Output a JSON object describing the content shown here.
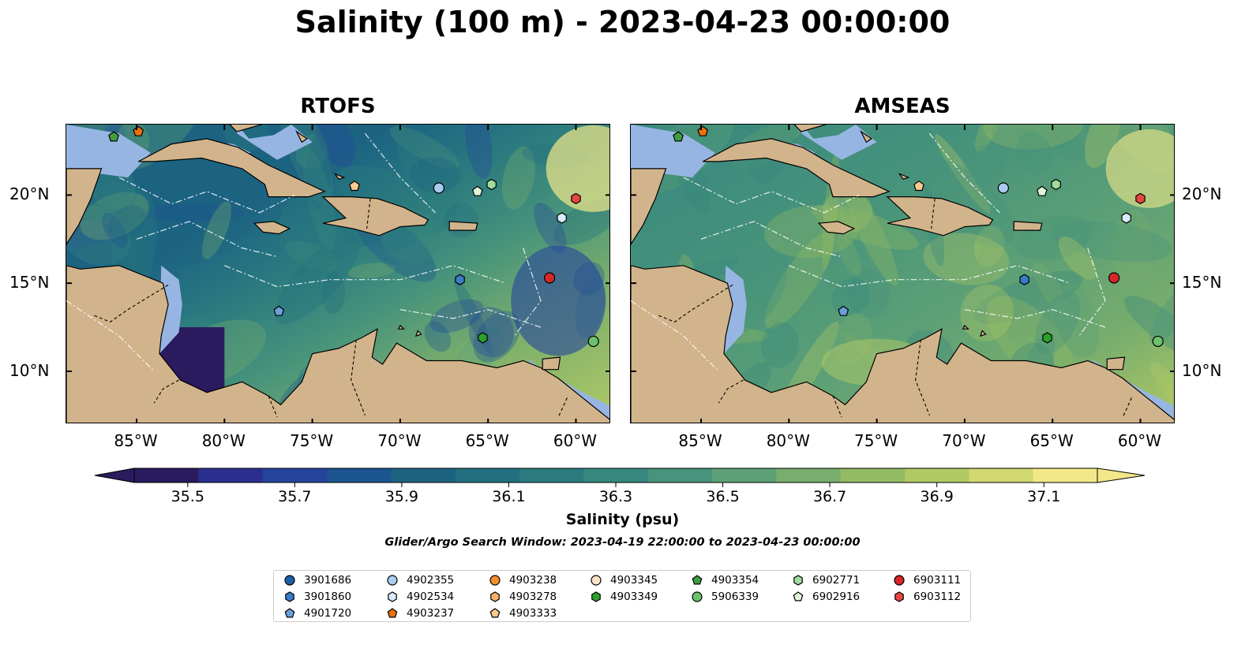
{
  "title": "Salinity (100 m) - 2023-04-23 00:00:00",
  "colors": {
    "land": "#d2b48c",
    "shelf_water": "#97b5e3",
    "colormap": [
      "#2a1a5e",
      "#2b2f8f",
      "#24449c",
      "#1b5490",
      "#1c6382",
      "#226f7f",
      "#2b7b7f",
      "#36877e",
      "#47937b",
      "#5da076",
      "#78ad6d",
      "#93bb62",
      "#b1c965",
      "#d1d970",
      "#f2e88a"
    ]
  },
  "panels": [
    {
      "title": "RTOFS",
      "tone": "rtofs"
    },
    {
      "title": "AMSEAS",
      "tone": "amseas"
    }
  ],
  "axes": {
    "x_ticks": [
      "85°W",
      "80°W",
      "75°W",
      "70°W",
      "65°W",
      "60°W"
    ],
    "x_tick_values": [
      -85,
      -80,
      -75,
      -70,
      -65,
      -60
    ],
    "y_ticks": [
      "20°N",
      "15°N",
      "10°N"
    ],
    "y_tick_values": [
      20,
      15,
      10
    ],
    "lon_range": [
      -89,
      -58
    ],
    "lat_range": [
      7,
      24
    ]
  },
  "colorbar": {
    "ticks": [
      "35.5",
      "35.7",
      "35.9",
      "36.1",
      "36.3",
      "36.5",
      "36.7",
      "36.9",
      "37.1"
    ],
    "range": [
      35.4,
      37.2
    ],
    "label": "Salinity (psu)",
    "extend": "both"
  },
  "search_window": "Glider/Argo Search Window: 2023-04-19 22:00:00 to 2023-04-23 00:00:00",
  "legend": {
    "columns": [
      [
        {
          "id": "3901686",
          "marker": "circle",
          "color": "#1f5fa8"
        },
        {
          "id": "3901860",
          "marker": "hexagon",
          "color": "#3a7cc6"
        },
        {
          "id": "4901720",
          "marker": "pentagon",
          "color": "#6b9fd8"
        }
      ],
      [
        {
          "id": "4902355",
          "marker": "circle",
          "color": "#a9cbee"
        },
        {
          "id": "4902534",
          "marker": "hexagon",
          "color": "#d8eafb"
        }
      ],
      [
        {
          "id": "4903238",
          "marker": "circle",
          "color": "#f28e2b"
        },
        {
          "id": "4903278",
          "marker": "hexagon",
          "color": "#f7b06a"
        },
        {
          "id": "4903237",
          "marker": "pentagon",
          "color": "#e8720c"
        },
        {
          "id": "4903333",
          "marker": "pentagon",
          "color": "#f9c98e"
        }
      ],
      [
        {
          "id": "4903345",
          "marker": "circle",
          "color": "#fbe3c9"
        },
        {
          "id": "4903349",
          "marker": "hexagon",
          "color": "#2ca02c"
        }
      ],
      [
        {
          "id": "4903354",
          "marker": "pentagon",
          "color": "#3f9f3f"
        },
        {
          "id": "5906339",
          "marker": "circle",
          "color": "#6cc16c"
        }
      ],
      [
        {
          "id": "6902771",
          "marker": "hexagon",
          "color": "#9fdc9f"
        },
        {
          "id": "6902916",
          "marker": "pentagon",
          "color": "#dff5d8"
        }
      ],
      [
        {
          "id": "6903111",
          "marker": "circle",
          "color": "#d62728"
        },
        {
          "id": "6903112",
          "marker": "hexagon",
          "color": "#e5483f"
        }
      ]
    ]
  },
  "floats": [
    {
      "id": "4903354",
      "lon": -86.3,
      "lat": 23.3
    },
    {
      "id": "4903237",
      "lon": -84.9,
      "lat": 23.6
    },
    {
      "id": "4903333",
      "lon": -72.6,
      "lat": 20.5
    },
    {
      "id": "4902355",
      "lon": -67.8,
      "lat": 20.4
    },
    {
      "id": "6902916",
      "lon": -65.6,
      "lat": 20.2
    },
    {
      "id": "6902771",
      "lon": -64.8,
      "lat": 20.6
    },
    {
      "id": "6903112",
      "lon": -60.0,
      "lat": 19.8
    },
    {
      "id": "4902534",
      "lon": -60.8,
      "lat": 18.7
    },
    {
      "id": "3901860",
      "lon": -66.6,
      "lat": 15.2
    },
    {
      "id": "6903111",
      "lon": -61.5,
      "lat": 15.3
    },
    {
      "id": "4901720",
      "lon": -76.9,
      "lat": 13.4
    },
    {
      "id": "4903349",
      "lon": -65.3,
      "lat": 11.9
    },
    {
      "id": "5906339",
      "lon": -59.0,
      "lat": 11.7
    }
  ]
}
